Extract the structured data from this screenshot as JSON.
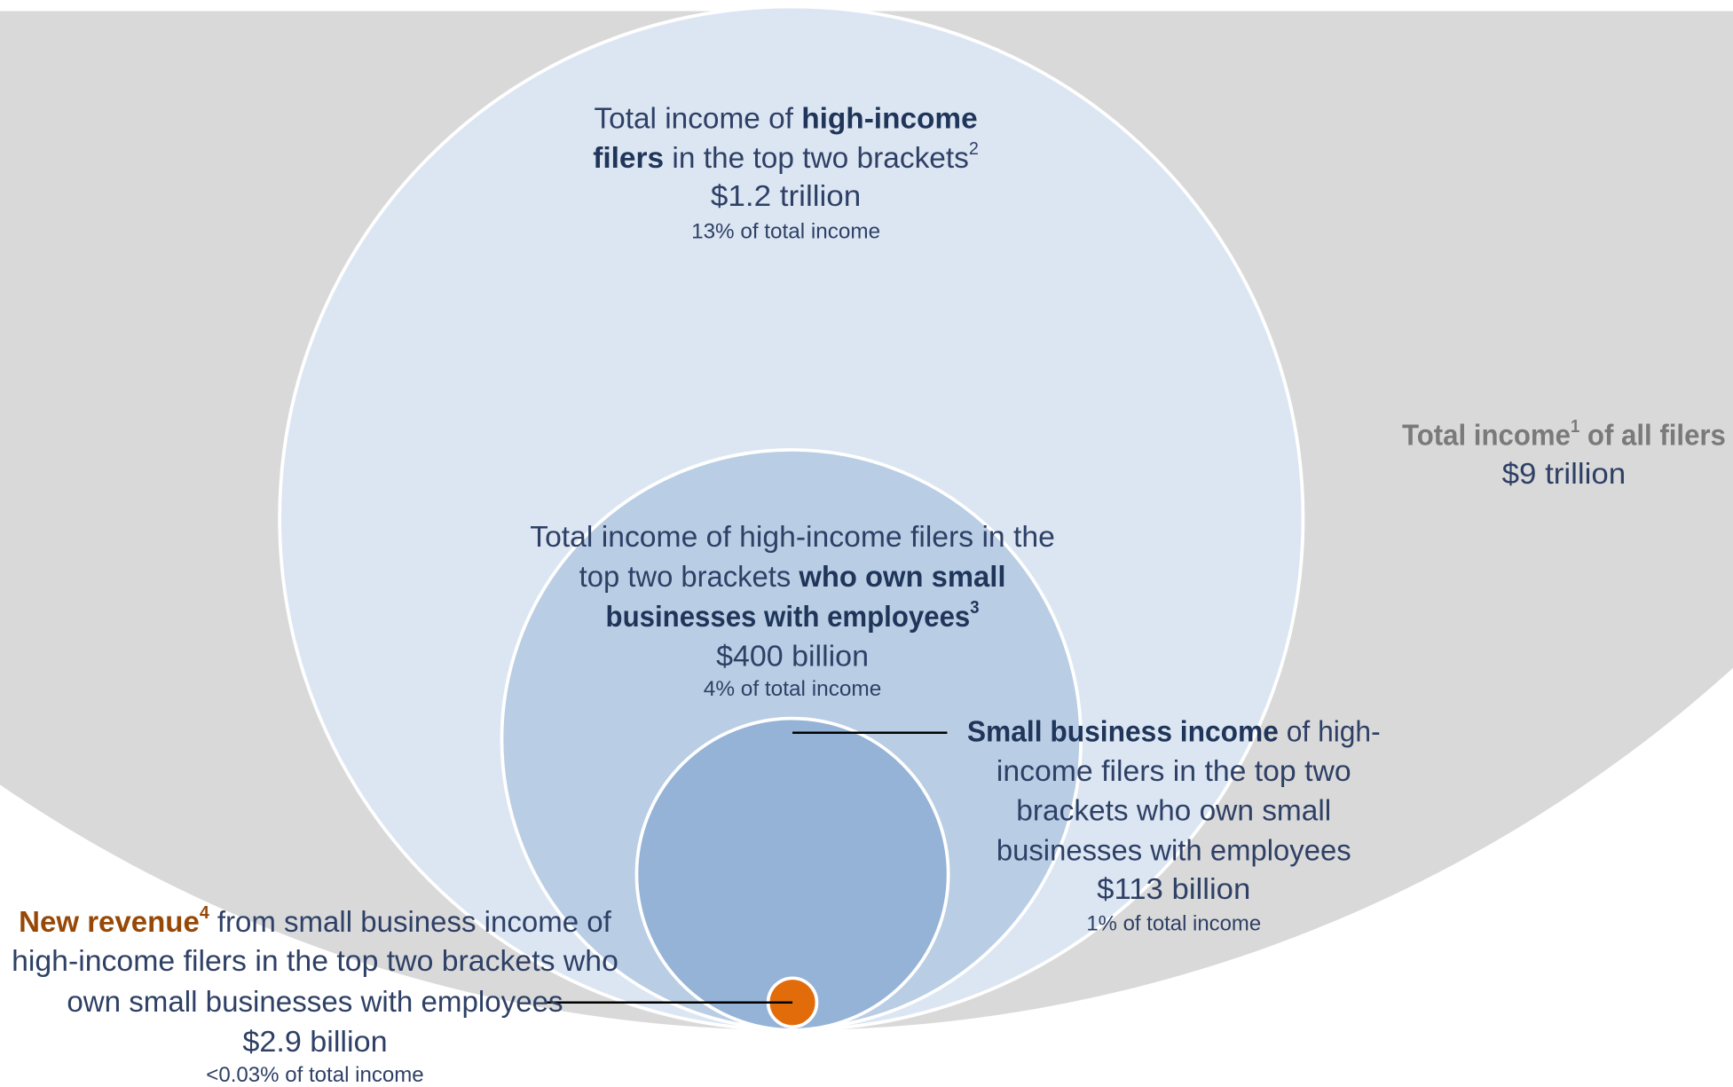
{
  "total_income": {
    "label": [
      "Total income",
      "1",
      " of all filers"
    ],
    "amount": "$9 trillion"
  },
  "high_income": {
    "label": [
      "Total income of ",
      "high-income",
      "filers",
      " in the top two brackets",
      "2"
    ],
    "amount": "$1.2 trillion",
    "share": "13% of total income"
  },
  "small_business_owners": {
    "label": [
      "Total income of high-income filers in the",
      "top two brackets ",
      "who own small",
      "businesses with employees",
      "3"
    ],
    "amount": "$400 billion",
    "share": "4% of total income"
  },
  "small_business_income": {
    "label": [
      "Small business income",
      " of high-",
      "income filers in the top two",
      "brackets who own small",
      "businesses with employees"
    ],
    "amount": "$113 billion",
    "share": "1% of total income"
  },
  "new_revenue": {
    "label": [
      "New revenue",
      "4",
      " from small business income of",
      "high-income filers in the top two brackets who",
      "own small businesses with employees"
    ],
    "amount": "$2.9 billion",
    "share": "<0.03% of total income"
  }
}
